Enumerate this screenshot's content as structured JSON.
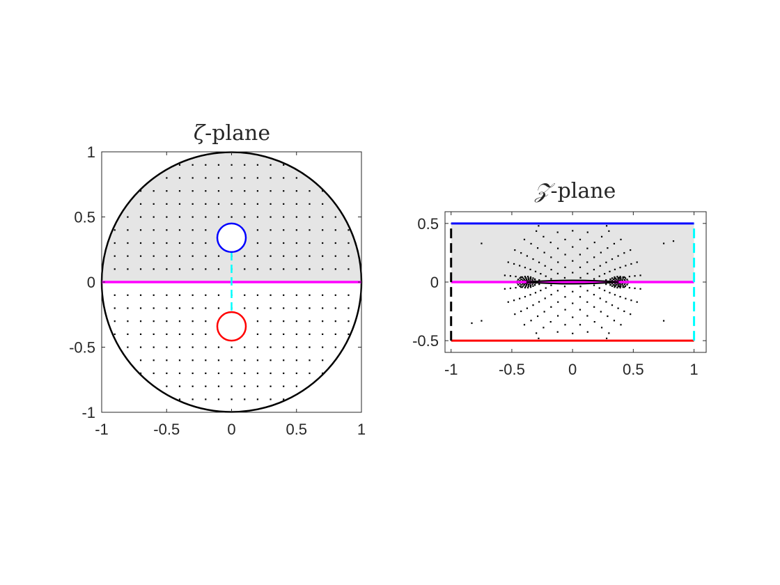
{
  "colors": {
    "background": "#ffffff",
    "axes_edge": "#262626",
    "shaded_region": "#e5e5e5",
    "outer_boundary": "#000000",
    "real_axis": "#ff00ff",
    "upper_contour": "#0000ff",
    "lower_contour": "#ff0000",
    "left_edge": "#000000",
    "right_edge": "#00ffff",
    "grid_points": "#000000"
  },
  "chart_data": [
    {
      "type": "scatter",
      "title_symbol": "ζ",
      "title_text": "-plane",
      "xlabel": "",
      "ylabel": "",
      "xlim": [
        -1,
        1
      ],
      "ylim": [
        -1,
        1
      ],
      "xticks": [
        -1,
        -0.5,
        0,
        0.5,
        1
      ],
      "xtick_labels": [
        "-1",
        "-0.5",
        "0",
        "0.5",
        "1"
      ],
      "yticks": [
        -1,
        -0.5,
        0,
        0.5,
        1
      ],
      "ytick_labels": [
        "-1",
        "-0.5",
        "0",
        "0.5",
        "1"
      ],
      "grid": false,
      "shaded_region": "upper half of unit disk (Im ζ > 0)",
      "outer_boundary": {
        "shape": "circle",
        "center": [
          0,
          0
        ],
        "radius": 1
      },
      "upper_circle": {
        "center": [
          0,
          0.34
        ],
        "radius": 0.11
      },
      "lower_circle": {
        "center": [
          0,
          -0.34
        ],
        "radius": 0.11
      },
      "real_axis_segment": [
        [
          -1,
          0
        ],
        [
          1,
          0
        ]
      ],
      "slit_segment": [
        [
          0,
          0.23
        ],
        [
          0,
          -0.23
        ]
      ],
      "point_grid": {
        "spacing": 0.1,
        "extent": "interior of unit disk excluding both small circles"
      }
    },
    {
      "type": "scatter",
      "title_symbol": "𝒵",
      "title_text": "-plane",
      "xlabel": "",
      "ylabel": "",
      "xlim": [
        -1.05,
        1.1
      ],
      "ylim": [
        -0.6,
        0.6
      ],
      "xticks": [
        -1,
        -0.5,
        0,
        0.5,
        1
      ],
      "xtick_labels": [
        "-1",
        "-0.5",
        "0",
        "0.5",
        "1"
      ],
      "yticks": [
        -0.5,
        0,
        0.5
      ],
      "ytick_labels": [
        "-0.5",
        "0",
        "0.5"
      ],
      "grid": false,
      "shaded_region": "upper half of strip, 0 < Im z < 0.5",
      "top_edge": [
        [
          -1,
          0.5
        ],
        [
          1,
          0.5
        ]
      ],
      "bottom_edge": [
        [
          -1,
          -0.5
        ],
        [
          1,
          -0.5
        ]
      ],
      "left_edge": [
        [
          -1,
          -0.5
        ],
        [
          -1,
          0.5
        ]
      ],
      "right_edge": [
        [
          1,
          -0.5
        ],
        [
          1,
          0.5
        ]
      ],
      "real_axis_segment": [
        [
          -1,
          0
        ],
        [
          1,
          0
        ]
      ],
      "slit": {
        "from": [
          -0.38,
          0
        ],
        "to": [
          0.38,
          0
        ]
      },
      "image_points": "image of the ζ-plane point grid under the conformal map, clustering at z = ±0.38"
    }
  ]
}
